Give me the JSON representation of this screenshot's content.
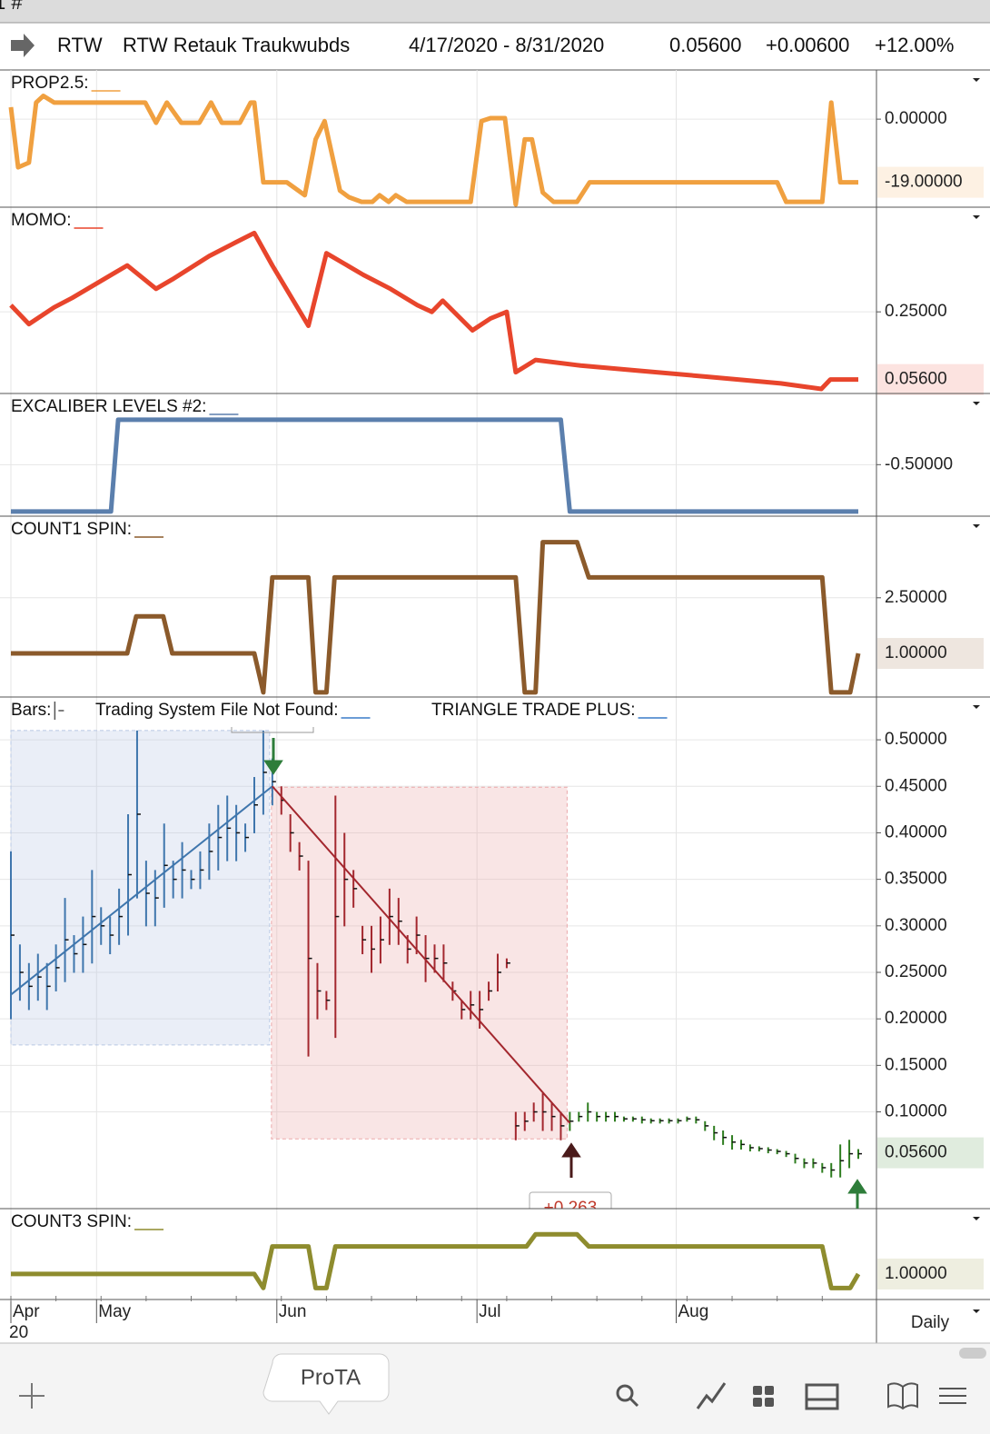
{
  "top_strip": "1 #",
  "header": {
    "symbol": "RTW",
    "name": "RTW Retauk Traukwubds",
    "range": "4/17/2020 - 8/31/2020",
    "last": "0.05600",
    "change": "+0.00600",
    "change_pct": "+12.00%"
  },
  "x_axis": {
    "xlim": [
      0,
      94
    ],
    "ticks": [
      {
        "value": 0,
        "label": "Apr"
      },
      {
        "value": 9.5,
        "label": "May"
      },
      {
        "value": 29.5,
        "label": "Jun"
      },
      {
        "value": 51.7,
        "label": "Jul"
      },
      {
        "value": 73.8,
        "label": "Aug"
      }
    ],
    "year": "20",
    "period": "Daily"
  },
  "panels": [
    {
      "type": "line",
      "title": "PROP2.5:",
      "color": "#f0a040",
      "ylim": [
        -26.5,
        14.8
      ],
      "yticks": [
        {
          "value": 0,
          "label": "0.00000"
        }
      ],
      "last": {
        "value": -19,
        "label": "-19.00000"
      },
      "x": [
        0,
        0.8,
        2,
        2.8,
        3.6,
        4.8,
        14.9,
        16.1,
        17.3,
        18.9,
        20.9,
        22.2,
        23.4,
        25.4,
        26.6,
        27,
        28,
        30.6,
        32.6,
        33.8,
        34.8,
        36.5,
        37.5,
        38.9,
        40.1,
        40.9,
        41.9,
        42.7,
        43.9,
        51,
        52.2,
        53.2,
        54.8,
        56,
        57,
        57.8,
        59,
        60.2,
        62.8,
        64.2,
        85,
        86,
        90,
        91,
        92,
        94
      ],
      "values": [
        3.6,
        -14.5,
        -13.1,
        5,
        7,
        5,
        5,
        -1.1,
        5,
        -1.1,
        -1.1,
        5,
        -1.1,
        -1.1,
        5,
        5,
        -19,
        -19,
        -22.9,
        -6.1,
        -0.6,
        -21.5,
        -23.5,
        -24.9,
        -24.9,
        -22.9,
        -24.9,
        -22.9,
        -24.9,
        -24.9,
        -0.6,
        0.3,
        0.3,
        -25.7,
        -6.1,
        -6.1,
        -22.1,
        -24.9,
        -24.9,
        -19,
        -19,
        -24.9,
        -24.9,
        5,
        -19,
        -19
      ]
    },
    {
      "type": "line",
      "title": "MOMO:",
      "color": "#e8452c",
      "ylim": [
        0.016,
        0.55
      ],
      "yticks": [
        {
          "value": 0.25,
          "label": "0.25000"
        }
      ],
      "last": {
        "value": 0.056,
        "label": "0.05600"
      },
      "x": [
        0,
        2,
        4.8,
        6.8,
        12.9,
        16.1,
        17.9,
        22,
        25,
        27,
        29,
        33,
        35,
        39.1,
        42.1,
        45.1,
        46.7,
        47.9,
        51.2,
        53.2,
        55,
        56,
        58.2,
        63.2,
        69.3,
        77.3,
        85.4,
        89.9,
        90.9,
        94
      ],
      "values": [
        0.269,
        0.215,
        0.263,
        0.29,
        0.383,
        0.316,
        0.343,
        0.41,
        0.45,
        0.476,
        0.383,
        0.21,
        0.418,
        0.356,
        0.316,
        0.269,
        0.25,
        0.282,
        0.197,
        0.231,
        0.25,
        0.077,
        0.112,
        0.096,
        0.082,
        0.064,
        0.045,
        0.029,
        0.056,
        0.056
      ]
    },
    {
      "type": "line",
      "title": "EXCALIBER LEVELS #2:",
      "color": "#5b7fad",
      "ylim": [
        -1.05,
        0.26
      ],
      "yticks": [
        {
          "value": -0.5,
          "label": "-0.50000"
        }
      ],
      "x": [
        0,
        11.1,
        11.9,
        61,
        62,
        94
      ],
      "values": [
        -1,
        -1,
        -0.02,
        -0.02,
        -1,
        -1
      ]
    },
    {
      "type": "line",
      "title": "COUNT1 SPIN:",
      "color": "#8b5a2b",
      "ylim": [
        -0.175,
        4.7
      ],
      "yticks": [
        {
          "value": 2.5,
          "label": "2.50000"
        }
      ],
      "last": {
        "value": 1,
        "label": "1.00000"
      },
      "x": [
        0,
        12.9,
        13.9,
        16.9,
        17.9,
        27,
        28,
        29,
        33,
        33.8,
        35,
        35.9,
        56,
        57,
        58.2,
        59,
        62.8,
        64.1,
        90,
        91,
        93.1,
        94
      ],
      "values": [
        1,
        1,
        2,
        2,
        1,
        1,
        -0.05,
        3.05,
        3.05,
        -0.05,
        -0.05,
        3.05,
        3.05,
        -0.05,
        -0.05,
        4,
        4,
        3.05,
        3.05,
        -0.05,
        -0.05,
        1
      ]
    },
    {
      "type": "bars",
      "title": "Bars:",
      "labels": [
        "Trading System File Not Found:",
        "TRIANGLE TRADE PLUS:"
      ],
      "ylim": [
        -0.004,
        0.546
      ],
      "yticks": [
        {
          "value": 0.5,
          "label": "0.50000"
        },
        {
          "value": 0.45,
          "label": "0.45000"
        },
        {
          "value": 0.4,
          "label": "0.40000"
        },
        {
          "value": 0.35,
          "label": "0.35000"
        },
        {
          "value": 0.3,
          "label": "0.30000"
        },
        {
          "value": 0.25,
          "label": "0.25000"
        },
        {
          "value": 0.2,
          "label": "0.20000"
        },
        {
          "value": 0.15,
          "label": "0.15000"
        },
        {
          "value": 0.1,
          "label": "0.10000"
        }
      ],
      "last": {
        "value": 0.056,
        "label": "0.05600"
      },
      "zones": [
        {
          "color": "#b8c8e4",
          "x": [
            0,
            28.7
          ],
          "values": [
            0.51,
            0.172
          ]
        },
        {
          "color": "#eba8aa",
          "x": [
            28.9,
            61.7
          ],
          "values": [
            0.449,
            0.071
          ]
        }
      ],
      "trend_lines": [
        {
          "color": "#3f76ad",
          "x": [
            0,
            29
          ],
          "values": [
            0.226,
            0.45
          ]
        },
        {
          "color": "#a3272e",
          "x": [
            29,
            62
          ],
          "values": [
            0.45,
            0.088
          ]
        }
      ],
      "bars": [
        {
          "color": "#3f76ad",
          "x": [
            0,
            1,
            2,
            3,
            4,
            5,
            6,
            7,
            8,
            9,
            10,
            11,
            12,
            13,
            14,
            15,
            16,
            17,
            18,
            19,
            20,
            21,
            22,
            23,
            24,
            25,
            26,
            27,
            28,
            29
          ],
          "high": [
            0.38,
            0.28,
            0.26,
            0.27,
            0.26,
            0.28,
            0.33,
            0.29,
            0.31,
            0.36,
            0.32,
            0.31,
            0.34,
            0.42,
            0.51,
            0.37,
            0.36,
            0.41,
            0.37,
            0.39,
            0.36,
            0.38,
            0.41,
            0.43,
            0.44,
            0.43,
            0.41,
            0.46,
            0.51,
            0.48
          ],
          "low": [
            0.2,
            0.22,
            0.21,
            0.22,
            0.21,
            0.23,
            0.24,
            0.25,
            0.25,
            0.26,
            0.28,
            0.27,
            0.28,
            0.29,
            0.33,
            0.3,
            0.3,
            0.32,
            0.33,
            0.33,
            0.34,
            0.34,
            0.35,
            0.36,
            0.37,
            0.37,
            0.38,
            0.4,
            0.42,
            0.43
          ]
        },
        {
          "color": "#a3272e",
          "x": [
            30,
            31,
            32,
            33,
            34,
            35,
            36,
            37,
            38,
            39,
            40,
            41,
            42,
            43,
            44,
            45,
            46,
            47,
            48,
            49,
            50,
            51,
            52,
            53,
            54,
            55,
            56,
            57,
            58,
            59,
            60,
            61
          ],
          "high": [
            0.45,
            0.42,
            0.39,
            0.37,
            0.26,
            0.23,
            0.44,
            0.4,
            0.36,
            0.3,
            0.3,
            0.31,
            0.34,
            0.33,
            0.29,
            0.31,
            0.29,
            0.28,
            0.28,
            0.24,
            0.22,
            0.23,
            0.23,
            0.24,
            0.27,
            0.265,
            0.1,
            0.1,
            0.11,
            0.12,
            0.11,
            0.1
          ],
          "low": [
            0.42,
            0.38,
            0.36,
            0.16,
            0.2,
            0.21,
            0.18,
            0.3,
            0.32,
            0.27,
            0.25,
            0.26,
            0.28,
            0.28,
            0.26,
            0.27,
            0.24,
            0.25,
            0.24,
            0.22,
            0.2,
            0.2,
            0.19,
            0.22,
            0.23,
            0.255,
            0.07,
            0.08,
            0.09,
            0.08,
            0.08,
            0.07
          ]
        },
        {
          "color": "#2e7d1f",
          "x": [
            62,
            63,
            64,
            65,
            66,
            67,
            68,
            69,
            70,
            71,
            72,
            73,
            74,
            75,
            76,
            77,
            78,
            79,
            80,
            81,
            82,
            83,
            84,
            85,
            86,
            87,
            88,
            89,
            90,
            91,
            92,
            93,
            94
          ],
          "high": [
            0.1,
            0.1,
            0.11,
            0.1,
            0.1,
            0.1,
            0.095,
            0.095,
            0.095,
            0.093,
            0.093,
            0.093,
            0.093,
            0.095,
            0.095,
            0.09,
            0.085,
            0.08,
            0.075,
            0.07,
            0.065,
            0.063,
            0.062,
            0.06,
            0.058,
            0.055,
            0.05,
            0.05,
            0.045,
            0.045,
            0.065,
            0.07,
            0.06
          ],
          "low": [
            0.08,
            0.09,
            0.09,
            0.09,
            0.09,
            0.09,
            0.09,
            0.09,
            0.088,
            0.088,
            0.088,
            0.088,
            0.088,
            0.09,
            0.088,
            0.08,
            0.07,
            0.065,
            0.06,
            0.06,
            0.058,
            0.058,
            0.056,
            0.055,
            0.052,
            0.045,
            0.04,
            0.04,
            0.035,
            0.03,
            0.03,
            0.04,
            0.05
          ]
        }
      ],
      "trade_label": "+0.263"
    },
    {
      "type": "line",
      "title": "COUNT3 SPIN:",
      "color": "#8e8c2e",
      "ylim": [
        0.325,
        2.73
      ],
      "yticks": [],
      "last": {
        "value": 1,
        "label": "1.00000"
      },
      "x": [
        0,
        27,
        28,
        29,
        33,
        33.8,
        35,
        36,
        57.2,
        58.2,
        62.8,
        64.1,
        90,
        91,
        93.1,
        94
      ],
      "values": [
        1,
        1,
        0.63,
        1.73,
        1.73,
        0.63,
        0.63,
        1.73,
        1.73,
        2.05,
        2.05,
        1.73,
        1.73,
        0.63,
        0.63,
        1
      ]
    }
  ],
  "tab": "ProTA"
}
